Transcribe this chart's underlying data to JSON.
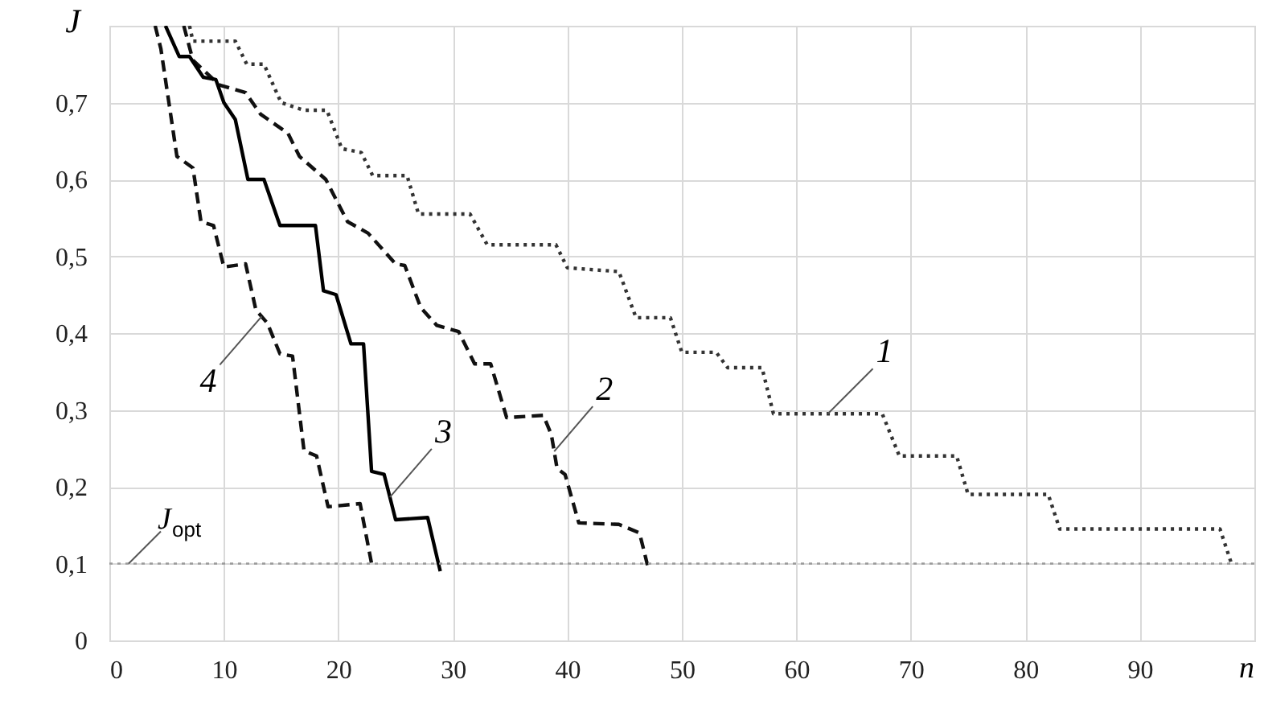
{
  "chart_data": {
    "type": "line",
    "xlabel": "n",
    "ylabel": "J",
    "xlim": [
      0,
      100
    ],
    "ylim": [
      0,
      0.8
    ],
    "xticks": [
      0,
      10,
      20,
      30,
      40,
      50,
      60,
      70,
      80,
      90
    ],
    "yticks": [
      0,
      {
        "value": 0.1,
        "label": "0,1"
      },
      {
        "value": 0.2,
        "label": "0,2"
      },
      {
        "value": 0.3,
        "label": "0,3"
      },
      {
        "value": 0.4,
        "label": "0,4"
      },
      {
        "value": 0.5,
        "label": "0,5"
      },
      {
        "value": 0.6,
        "label": "0,6"
      },
      {
        "value": 0.7,
        "label": "0,7"
      }
    ],
    "grid": true,
    "marker": "none",
    "ref_lines": [
      {
        "axis": "y",
        "value": 0.1,
        "label": "J$_{opt}$",
        "color": "#999999",
        "line_style": "dotted"
      }
    ],
    "series": [
      {
        "name": "1",
        "color": "#333333",
        "line_style": "dotted",
        "x": [
          7,
          7.3,
          11,
          12,
          13.5,
          15,
          17,
          19,
          20.3,
          22,
          23,
          26,
          27,
          31.5,
          33,
          39,
          40,
          44.5,
          46,
          49,
          50,
          53,
          54,
          57,
          58,
          67.5,
          69,
          74,
          75,
          82,
          83,
          97,
          98
        ],
        "values": [
          0.8,
          0.78,
          0.78,
          0.75,
          0.75,
          0.7,
          0.69,
          0.69,
          0.64,
          0.635,
          0.605,
          0.605,
          0.555,
          0.555,
          0.515,
          0.515,
          0.485,
          0.48,
          0.42,
          0.42,
          0.375,
          0.375,
          0.355,
          0.355,
          0.295,
          0.295,
          0.24,
          0.24,
          0.19,
          0.19,
          0.145,
          0.145,
          0.1
        ]
      },
      {
        "name": "2",
        "color": "#111111",
        "line_style": "dashed",
        "x": [
          6.5,
          7.3,
          9.6,
          11.9,
          13.2,
          15.6,
          16.6,
          18.9,
          20.8,
          22.6,
          25,
          25.8,
          27.2,
          28.6,
          30.5,
          31.9,
          33.3,
          34.7,
          37.9,
          38.6,
          39.1,
          39.8,
          41,
          44.5,
          46.3,
          47
        ],
        "values": [
          0.8,
          0.755,
          0.723,
          0.713,
          0.685,
          0.66,
          0.63,
          0.6,
          0.545,
          0.53,
          0.49,
          0.488,
          0.433,
          0.41,
          0.402,
          0.36,
          0.36,
          0.29,
          0.293,
          0.268,
          0.224,
          0.216,
          0.153,
          0.151,
          0.14,
          0.098
        ]
      },
      {
        "name": "3",
        "color": "#000000",
        "line_style": "solid",
        "x": [
          4.9,
          6.1,
          7,
          8.2,
          9.3,
          10,
          11,
          12.1,
          13.5,
          14.9,
          18,
          18.7,
          19.8,
          21.1,
          22.2,
          22.9,
          24,
          25,
          27.8,
          28.9
        ],
        "values": [
          0.8,
          0.76,
          0.76,
          0.733,
          0.73,
          0.7,
          0.678,
          0.6,
          0.6,
          0.54,
          0.54,
          0.455,
          0.45,
          0.386,
          0.386,
          0.22,
          0.216,
          0.157,
          0.16,
          0.09
        ]
      },
      {
        "name": "4",
        "color": "#111111",
        "line_style": "dashed",
        "x": [
          4,
          4.5,
          5.9,
          7.3,
          8,
          9.1,
          10,
          11.9,
          12.8,
          13.8,
          14.9,
          16,
          17,
          18.1,
          19.1,
          21.9,
          22.9
        ],
        "values": [
          0.8,
          0.77,
          0.63,
          0.615,
          0.545,
          0.54,
          0.486,
          0.49,
          0.43,
          0.413,
          0.373,
          0.37,
          0.247,
          0.24,
          0.174,
          0.178,
          0.1
        ]
      }
    ]
  }
}
